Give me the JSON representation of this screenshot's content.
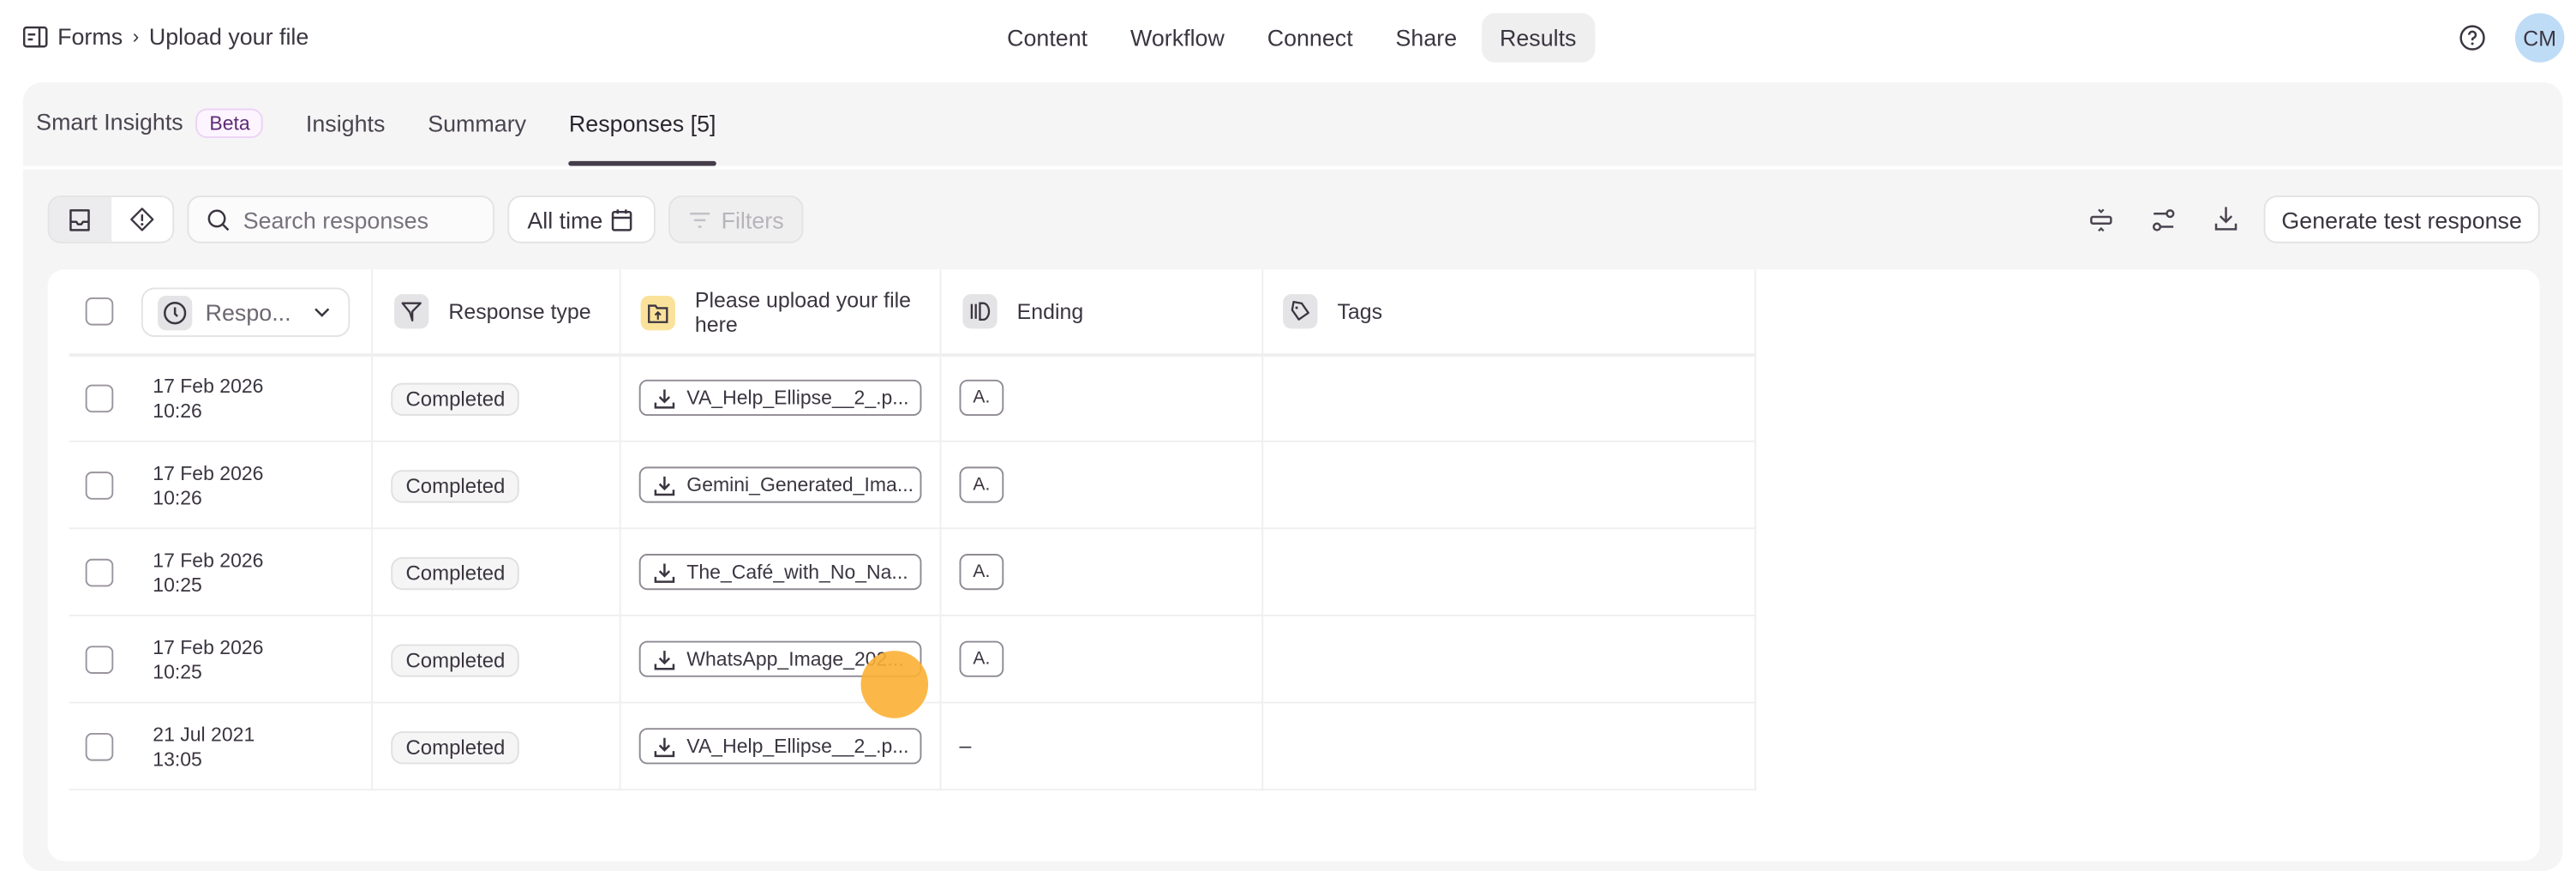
{
  "breadcrumb": {
    "root": "Forms",
    "current": "Upload your file"
  },
  "nav": {
    "items": [
      {
        "label": "Content"
      },
      {
        "label": "Workflow"
      },
      {
        "label": "Connect"
      },
      {
        "label": "Share"
      },
      {
        "label": "Results",
        "active": true
      }
    ]
  },
  "user": {
    "initials": "CM",
    "avatar_color": "#bfdcf7"
  },
  "tabs": {
    "items": [
      {
        "label": "Smart Insights",
        "badge": "Beta"
      },
      {
        "label": "Insights"
      },
      {
        "label": "Summary"
      },
      {
        "label": "Responses [5]",
        "active": true
      }
    ]
  },
  "toolbar": {
    "search_placeholder": "Search responses",
    "date_filter": "All time",
    "filters_label": "Filters",
    "generate_label": "Generate test response"
  },
  "table": {
    "columns": {
      "respondent": "Respo...",
      "response_type": "Response type",
      "upload": "Please upload your file here",
      "ending": "Ending",
      "tags": "Tags"
    },
    "rows": [
      {
        "date": "17 Feb 2026",
        "time": "10:26",
        "type": "Completed",
        "file": "VA_Help_Ellipse__2_.p...",
        "ending": "A."
      },
      {
        "date": "17 Feb 2026",
        "time": "10:26",
        "type": "Completed",
        "file": "Gemini_Generated_Ima...",
        "ending": "A."
      },
      {
        "date": "17 Feb 2026",
        "time": "10:25",
        "type": "Completed",
        "file": "The_Café_with_No_Na...",
        "ending": "A."
      },
      {
        "date": "17 Feb 2026",
        "time": "10:25",
        "type": "Completed",
        "file": "WhatsApp_Image_202...",
        "ending": "A."
      },
      {
        "date": "21 Jul 2021",
        "time": "13:05",
        "type": "Completed",
        "file": "VA_Help_Ellipse__2_.p...",
        "ending": "–"
      }
    ]
  },
  "colors": {
    "upload_icon_bg": "#fbe29a",
    "cursor": "#fbb034",
    "beta_text": "#5e2a76"
  }
}
